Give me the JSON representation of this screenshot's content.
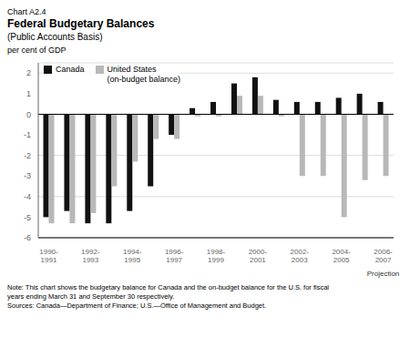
{
  "chart_data": {
    "type": "bar",
    "chart_label": "Chart A2.4",
    "title": "Federal Budgetary Balances",
    "subtitle": "(Public Accounts Basis)",
    "y_label": "per cent of GDP",
    "categories": [
      "1990-\n1991",
      null,
      "1992-\n1993",
      null,
      "1994-\n1995",
      null,
      "1996-\n1997",
      null,
      "1998-\n1999",
      null,
      "2000-\n2001",
      null,
      "2002-\n2003",
      null,
      "2004-\n2005",
      null,
      "2006-\n2007"
    ],
    "series": [
      {
        "name": "Canada",
        "color": "#111111",
        "values": [
          -5.0,
          -4.7,
          -5.3,
          -5.3,
          -4.7,
          -3.5,
          -1.0,
          0.3,
          0.6,
          1.5,
          1.8,
          0.7,
          0.6,
          0.6,
          0.8,
          1.0,
          0.6
        ]
      },
      {
        "name": "United States\n(on-budget balance)",
        "color": "#b8b8b8",
        "values": [
          -5.3,
          -5.3,
          -4.8,
          -3.5,
          -2.3,
          -1.2,
          -1.2,
          -0.1,
          -0.1,
          0.9,
          0.9,
          -0.1,
          -3.0,
          -3.0,
          -5.0,
          -3.2,
          -3.0
        ]
      }
    ],
    "ylim": [
      -6,
      2.5
    ],
    "yticks": [
      -6,
      -5,
      -4,
      -3,
      -2,
      -1,
      0,
      1,
      2
    ],
    "grid": true,
    "legend": "upper left",
    "annotations": [
      {
        "text": "Projection",
        "x": "2006-\n2007"
      }
    ],
    "notes": [
      "Note: This chart shows the budgetary balance for Canada and the on-budget balance for the U.S. for fiscal",
      "years ending March 31 and September 30 respectively."
    ],
    "source": "Sources: Canada—Department of Finance; U.S.—Office of Management and Budget."
  }
}
